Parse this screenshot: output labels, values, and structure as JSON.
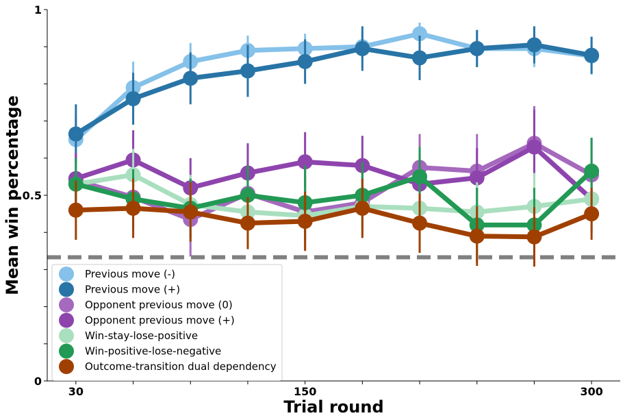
{
  "chart_data": {
    "type": "line",
    "xlabel": "Trial round",
    "ylabel": "Mean win percentage",
    "x": [
      30,
      60,
      90,
      120,
      150,
      180,
      210,
      240,
      270,
      300
    ],
    "xticks": [
      {
        "value": 30,
        "label": "30"
      },
      {
        "value": 150,
        "label": "150"
      },
      {
        "value": 300,
        "label": "300"
      }
    ],
    "yticks": [
      {
        "value": 0,
        "label": "0"
      },
      {
        "value": 0.5,
        "label": "0.5"
      },
      {
        "value": 1,
        "label": "1"
      }
    ],
    "xlim": [
      15,
      315
    ],
    "ylim": [
      0,
      1
    ],
    "reference_line": {
      "y": 0.333,
      "color": "#808080",
      "style": "dashed"
    },
    "legend_position": "lower-left",
    "series": [
      {
        "name": "Previous move (-)",
        "color": "#85C1E9",
        "values": [
          0.65,
          0.79,
          0.86,
          0.89,
          0.895,
          0.9,
          0.935,
          0.895,
          0.895,
          0.875
        ],
        "err": [
          0.06,
          0.07,
          0.05,
          0.04,
          0.04,
          0.04,
          0.03,
          0.05,
          0.05,
          0.05
        ]
      },
      {
        "name": "Previous move (+)",
        "color": "#2874A6",
        "values": [
          0.665,
          0.76,
          0.815,
          0.835,
          0.86,
          0.895,
          0.87,
          0.895,
          0.905,
          0.877
        ],
        "err": [
          0.08,
          0.07,
          0.07,
          0.07,
          0.06,
          0.06,
          0.06,
          0.05,
          0.05,
          0.05
        ]
      },
      {
        "name": "Opponent previous move (0)",
        "color": "#A569BD",
        "values": [
          0.54,
          0.495,
          0.435,
          0.505,
          0.455,
          0.48,
          0.575,
          0.565,
          0.64,
          0.555
        ],
        "err": [
          0.07,
          0.09,
          0.1,
          0.09,
          0.1,
          0.09,
          0.09,
          0.1,
          0.1,
          0.1
        ]
      },
      {
        "name": "Opponent previous move (+)",
        "color": "#8E44AD",
        "values": [
          0.545,
          0.595,
          0.52,
          0.56,
          0.59,
          0.58,
          0.53,
          0.547,
          0.63,
          0.49
        ],
        "err": [
          0.07,
          0.08,
          0.08,
          0.08,
          0.08,
          0.08,
          0.08,
          0.08,
          0.1,
          0.09
        ]
      },
      {
        "name": "Win-stay-lose-positive",
        "color": "#A9DFBF",
        "values": [
          0.53,
          0.555,
          0.475,
          0.455,
          0.445,
          0.47,
          0.465,
          0.455,
          0.47,
          0.49
        ],
        "err": [
          0.06,
          0.07,
          0.08,
          0.08,
          0.08,
          0.08,
          0.08,
          0.08,
          0.09,
          0.09
        ]
      },
      {
        "name": "Win-positive-lose-negative",
        "color": "#229954",
        "values": [
          0.53,
          0.49,
          0.465,
          0.5,
          0.48,
          0.5,
          0.55,
          0.42,
          0.42,
          0.565
        ],
        "err": [
          0.07,
          0.08,
          0.08,
          0.08,
          0.1,
          0.09,
          0.08,
          0.1,
          0.1,
          0.09
        ]
      },
      {
        "name": "Outcome-transition dual dependency",
        "color": "#A04000",
        "values": [
          0.46,
          0.465,
          0.455,
          0.425,
          0.43,
          0.465,
          0.425,
          0.39,
          0.388,
          0.45
        ],
        "err": [
          0.08,
          0.08,
          0.08,
          0.07,
          0.08,
          0.08,
          0.08,
          0.08,
          0.08,
          0.07
        ]
      }
    ]
  }
}
